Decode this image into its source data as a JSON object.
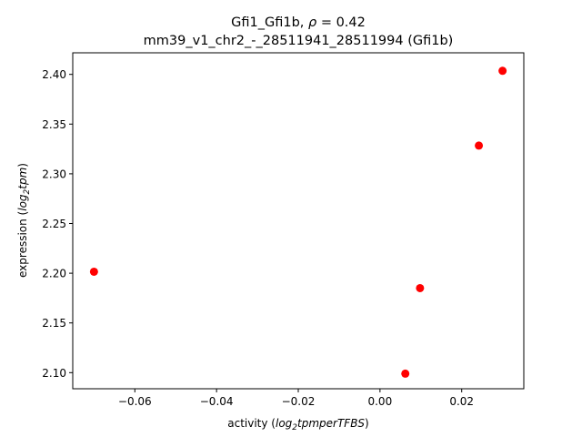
{
  "chart_data": {
    "type": "scatter",
    "title": "Gfi1_Gfi1b, ρ = 0.42",
    "subtitle": "mm39_v1_chr2_-_28511941_28511994 (Gfi1b)",
    "xlabel": "activity (log₂tpmperTFBS)",
    "ylabel": "expression (log₂tpm)",
    "xlim": [
      -0.0752,
      0.0352
    ],
    "ylim": [
      2.0838,
      2.4217
    ],
    "xticks": [
      -0.06,
      -0.04,
      -0.02,
      0.0,
      0.02
    ],
    "xtick_labels": [
      "−0.06",
      "−0.04",
      "−0.02",
      "0.00",
      "0.02"
    ],
    "yticks": [
      2.1,
      2.15,
      2.2,
      2.25,
      2.3,
      2.35,
      2.4
    ],
    "ytick_labels": [
      "2.10",
      "2.15",
      "2.20",
      "2.25",
      "2.30",
      "2.35",
      "2.40"
    ],
    "grid": false,
    "marker_color": "#ff0000",
    "series": [
      {
        "name": "samples",
        "x": [
          -0.07,
          0.0062,
          0.0098,
          0.0242,
          0.03
        ],
        "y": [
          2.2015,
          2.099,
          2.185,
          2.3284,
          2.4036
        ]
      }
    ]
  },
  "header": {
    "title_main": "Gfi1_Gfi1b, ",
    "title_rho": "ρ",
    "title_eq": " = 0.42",
    "subtitle": "mm39_v1_chr2_-_28511941_28511994 (Gfi1b)"
  },
  "axes": {
    "xlabel_prefix": "activity (",
    "xlabel_log": "log",
    "xlabel_sub": "2",
    "xlabel_unit": "tpmperTFBS",
    "xlabel_suffix": ")",
    "ylabel_prefix": "expression (",
    "ylabel_log": "log",
    "ylabel_sub": "2",
    "ylabel_unit": "tpm",
    "ylabel_suffix": ")"
  }
}
